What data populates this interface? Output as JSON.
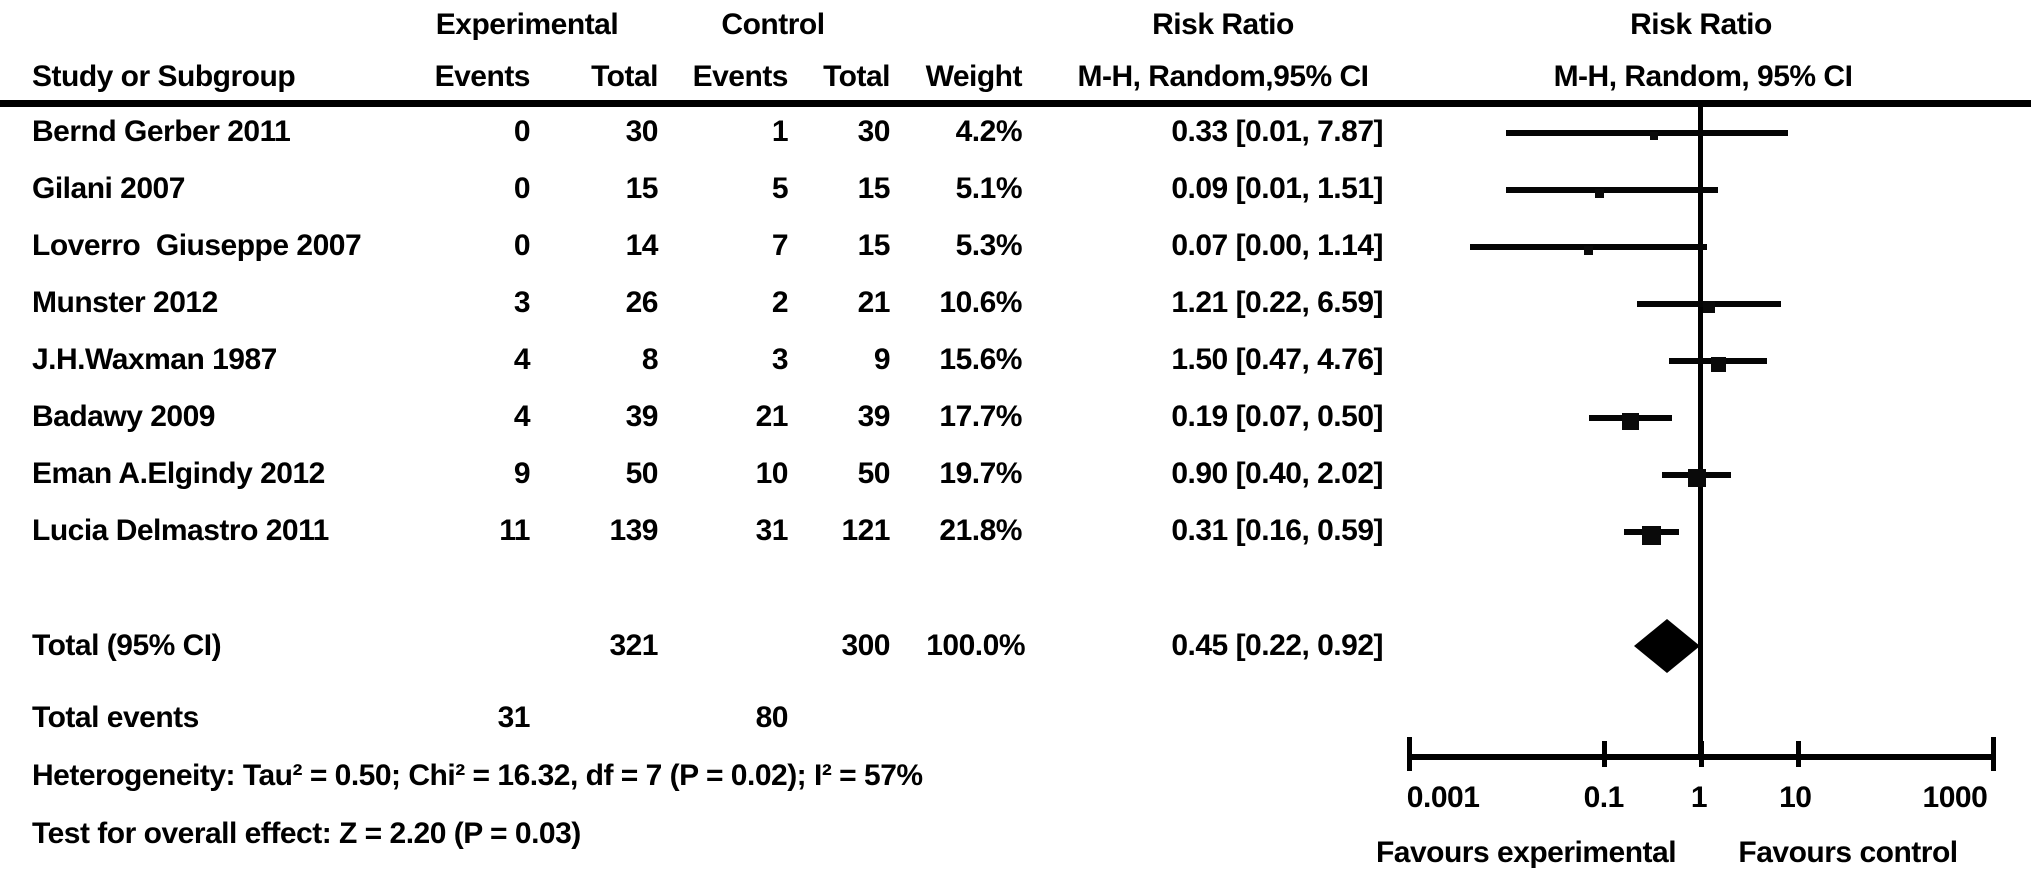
{
  "figure": {
    "header": {
      "study_col": "Study or Subgroup",
      "group_experimental": "Experimental",
      "group_control": "Control",
      "events_col": "Events",
      "total_col": "Total",
      "weight_col": "Weight",
      "rr_title": "Risk Ratio",
      "rr_subtitle_text": "M-H, Random,95% CI",
      "rr_subtitle_plot": "M-H, Random, 95% CI"
    },
    "totals": {
      "label": "Total (95% CI)",
      "exp_total": "321",
      "ctrl_total": "300",
      "weight": "100.0%",
      "rr_label": "0.45 [0.22, 0.92]"
    },
    "total_events": {
      "label": "Total events",
      "experimental": "31",
      "control": "80"
    },
    "footnotes": {
      "heterogeneity": "Heterogeneity: Tau² = 0.50; Chi² = 16.32, df = 7 (P = 0.02); I² = 57%",
      "overall_effect": "Test for overall effect: Z = 2.20 (P = 0.03)"
    },
    "axis": {
      "tick_labels": [
        "0.001",
        "0.1",
        "1",
        "10",
        "1000"
      ],
      "favours_left": "Favours experimental",
      "favours_right": "Favours control"
    }
  },
  "chart_data": {
    "type": "scatter",
    "variant": "forest_plot",
    "effect_measure": "Risk Ratio",
    "method": "M-H, Random, 95% CI",
    "x_scale": "log",
    "x_ticks": [
      0.001,
      0.1,
      1,
      10,
      1000
    ],
    "studies": [
      {
        "name": "Bernd Gerber 2011",
        "exp_events": 0,
        "exp_total": 30,
        "ctrl_events": 1,
        "ctrl_total": 30,
        "weight_pct": 4.2,
        "rr": 0.33,
        "ci_low": 0.01,
        "ci_high": 7.87
      },
      {
        "name": "Gilani 2007",
        "exp_events": 0,
        "exp_total": 15,
        "ctrl_events": 5,
        "ctrl_total": 15,
        "weight_pct": 5.1,
        "rr": 0.09,
        "ci_low": 0.01,
        "ci_high": 1.51
      },
      {
        "name": "Loverro  Giuseppe 2007",
        "exp_events": 0,
        "exp_total": 14,
        "ctrl_events": 7,
        "ctrl_total": 15,
        "weight_pct": 5.3,
        "rr": 0.07,
        "ci_low": 0.0,
        "ci_high": 1.14
      },
      {
        "name": "Munster 2012",
        "exp_events": 3,
        "exp_total": 26,
        "ctrl_events": 2,
        "ctrl_total": 21,
        "weight_pct": 10.6,
        "rr": 1.21,
        "ci_low": 0.22,
        "ci_high": 6.59
      },
      {
        "name": "J.H.Waxman 1987",
        "exp_events": 4,
        "exp_total": 8,
        "ctrl_events": 3,
        "ctrl_total": 9,
        "weight_pct": 15.6,
        "rr": 1.5,
        "ci_low": 0.47,
        "ci_high": 4.76
      },
      {
        "name": "Badawy 2009",
        "exp_events": 4,
        "exp_total": 39,
        "ctrl_events": 21,
        "ctrl_total": 39,
        "weight_pct": 17.7,
        "rr": 0.19,
        "ci_low": 0.07,
        "ci_high": 0.5
      },
      {
        "name": "Eman A.Elgindy 2012",
        "exp_events": 9,
        "exp_total": 50,
        "ctrl_events": 10,
        "ctrl_total": 50,
        "weight_pct": 19.7,
        "rr": 0.9,
        "ci_low": 0.4,
        "ci_high": 2.02
      },
      {
        "name": "Lucia Delmastro 2011",
        "exp_events": 11,
        "exp_total": 139,
        "ctrl_events": 31,
        "ctrl_total": 121,
        "weight_pct": 21.8,
        "rr": 0.31,
        "ci_low": 0.16,
        "ci_high": 0.59
      }
    ],
    "total": {
      "label": "Total (95% CI)",
      "exp_total": 321,
      "ctrl_total": 300,
      "weight_pct": 100.0,
      "rr": 0.45,
      "ci_low": 0.22,
      "ci_high": 0.92
    },
    "total_events": {
      "experimental": 31,
      "control": 80
    },
    "heterogeneity": {
      "tau2": 0.5,
      "chi2": 16.32,
      "df": 7,
      "p": 0.02,
      "i2_pct": 57
    },
    "overall_effect": {
      "z": 2.2,
      "p": 0.03
    },
    "x_axis_labels": {
      "left": "Favours experimental",
      "right": "Favours control"
    }
  }
}
